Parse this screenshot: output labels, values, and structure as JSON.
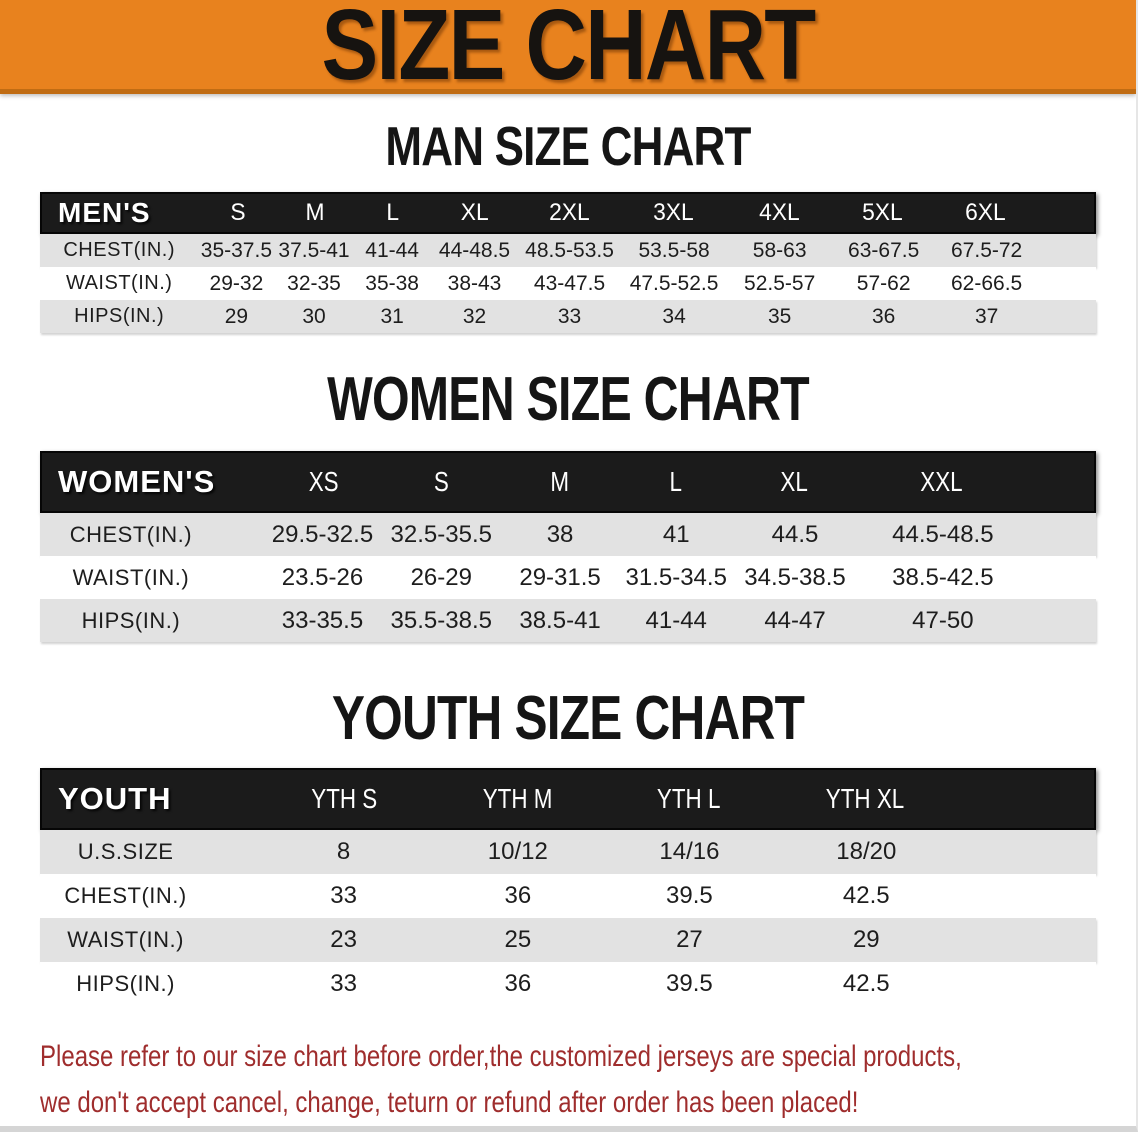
{
  "banner": {
    "title": "SIZE CHART",
    "bg_color": "#e8821e"
  },
  "sections": [
    {
      "heading": "MAN SIZE CHART",
      "table": {
        "header_label": "MEN'S",
        "columns": [
          "S",
          "M",
          "L",
          "XL",
          "2XL",
          "3XL",
          "4XL",
          "5XL",
          "6XL"
        ],
        "rows": [
          {
            "label": "CHEST(IN.)",
            "values": [
              "35-37.5",
              "37.5-41",
              "41-44",
              "44-48.5",
              "48.5-53.5",
              "53.5-58",
              "58-63",
              "63-67.5",
              "67.5-72"
            ]
          },
          {
            "label": "WAIST(IN.)",
            "values": [
              "29-32",
              "32-35",
              "35-38",
              "38-43",
              "43-47.5",
              "47.5-52.5",
              "52.5-57",
              "57-62",
              "62-66.5"
            ]
          },
          {
            "label": "HIPS(IN.)",
            "values": [
              "29",
              "30",
              "31",
              "32",
              "33",
              "34",
              "35",
              "36",
              "37"
            ]
          }
        ]
      }
    },
    {
      "heading": "WOMEN SIZE CHART",
      "table": {
        "header_label": "WOMEN'S",
        "columns": [
          "XS",
          "S",
          "M",
          "L",
          "XL",
          "XXL"
        ],
        "rows": [
          {
            "label": "CHEST(IN.)",
            "values": [
              "29.5-32.5",
              "32.5-35.5",
              "38",
              "41",
              "44.5",
              "44.5-48.5"
            ]
          },
          {
            "label": "WAIST(IN.)",
            "values": [
              "23.5-26",
              "26-29",
              "29-31.5",
              "31.5-34.5",
              "34.5-38.5",
              "38.5-42.5"
            ]
          },
          {
            "label": "HIPS(IN.)",
            "values": [
              "33-35.5",
              "35.5-38.5",
              "38.5-41",
              "41-44",
              "44-47",
              "47-50"
            ]
          }
        ]
      }
    },
    {
      "heading": "YOUTH SIZE CHART",
      "table": {
        "header_label": "YOUTH",
        "columns": [
          "YTH S",
          "YTH M",
          "YTH L",
          "YTH XL"
        ],
        "rows": [
          {
            "label": "U.S.SIZE",
            "values": [
              "8",
              "10/12",
              "14/16",
              "18/20"
            ]
          },
          {
            "label": "CHEST(IN.)",
            "values": [
              "33",
              "36",
              "39.5",
              "42.5"
            ]
          },
          {
            "label": "WAIST(IN.)",
            "values": [
              "23",
              "25",
              "27",
              "29"
            ]
          },
          {
            "label": "HIPS(IN.)",
            "values": [
              "33",
              "36",
              "39.5",
              "42.5"
            ]
          }
        ]
      }
    }
  ],
  "disclaimer": {
    "line1": "Please refer to our size chart before order,the customized jerseys are special products,",
    "line2": "we don't accept cancel, change, teturn or refund after order has been placed!",
    "color": "#9f2d2d"
  }
}
